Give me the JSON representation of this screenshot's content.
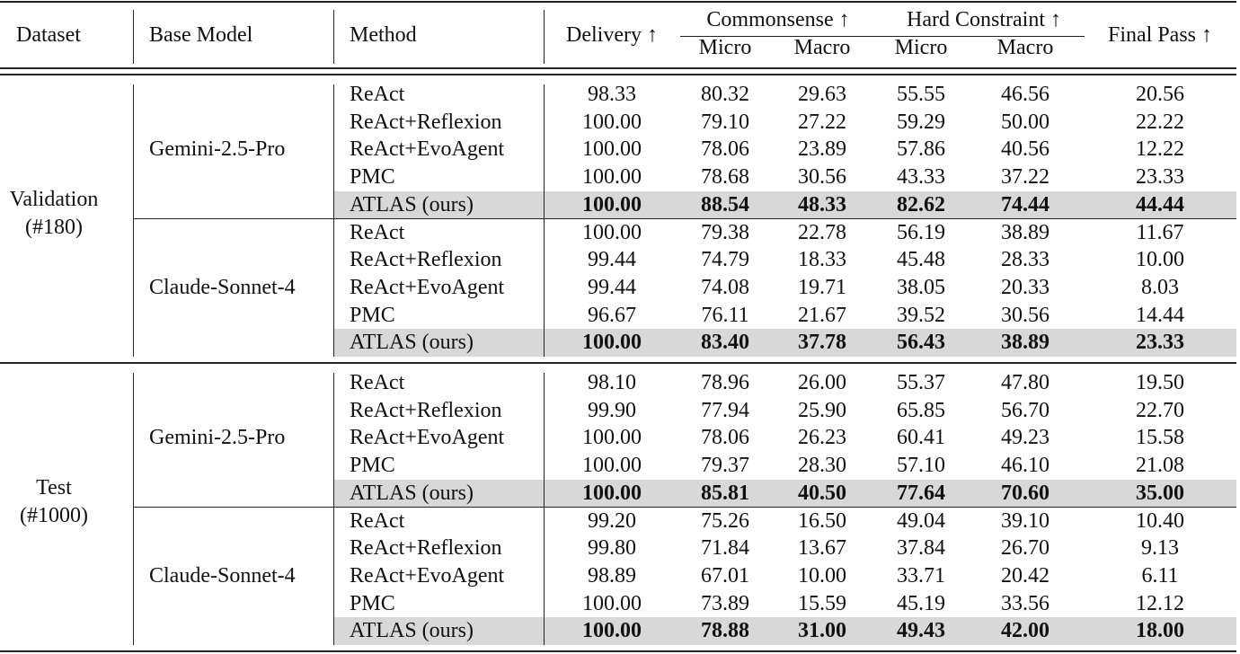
{
  "header": {
    "dataset": "Dataset",
    "base_model": "Base Model",
    "method": "Method",
    "delivery": "Delivery ↑",
    "commonsense": "Commonsense ↑",
    "hard_constraint": "Hard Constraint ↑",
    "micro": "Micro",
    "macro": "Macro",
    "final_pass": "Final Pass ↑"
  },
  "sections": [
    {
      "dataset": "Validation",
      "count": "(#180)",
      "models": [
        {
          "name": "Gemini-2.5-Pro",
          "rows": [
            {
              "method": "ReAct",
              "values": [
                "98.33",
                "80.32",
                "29.63",
                "55.55",
                "46.56",
                "20.56"
              ],
              "highlight": false
            },
            {
              "method": "ReAct+Reflexion",
              "values": [
                "100.00",
                "79.10",
                "27.22",
                "59.29",
                "50.00",
                "22.22"
              ],
              "highlight": false
            },
            {
              "method": "ReAct+EvoAgent",
              "values": [
                "100.00",
                "78.06",
                "23.89",
                "57.86",
                "40.56",
                "12.22"
              ],
              "highlight": false
            },
            {
              "method": "PMC",
              "values": [
                "100.00",
                "78.68",
                "30.56",
                "43.33",
                "37.22",
                "23.33"
              ],
              "highlight": false
            },
            {
              "method": "ATLAS (ours)",
              "values": [
                "100.00",
                "88.54",
                "48.33",
                "82.62",
                "74.44",
                "44.44"
              ],
              "highlight": true
            }
          ]
        },
        {
          "name": "Claude-Sonnet-4",
          "rows": [
            {
              "method": "ReAct",
              "values": [
                "100.00",
                "79.38",
                "22.78",
                "56.19",
                "38.89",
                "11.67"
              ],
              "highlight": false
            },
            {
              "method": "ReAct+Reflexion",
              "values": [
                "99.44",
                "74.79",
                "18.33",
                "45.48",
                "28.33",
                "10.00"
              ],
              "highlight": false
            },
            {
              "method": "ReAct+EvoAgent",
              "values": [
                "99.44",
                "74.08",
                "19.71",
                "38.05",
                "20.33",
                "8.03"
              ],
              "highlight": false
            },
            {
              "method": "PMC",
              "values": [
                "96.67",
                "76.11",
                "21.67",
                "39.52",
                "30.56",
                "14.44"
              ],
              "highlight": false
            },
            {
              "method": "ATLAS (ours)",
              "values": [
                "100.00",
                "83.40",
                "37.78",
                "56.43",
                "38.89",
                "23.33"
              ],
              "highlight": true
            }
          ]
        }
      ]
    },
    {
      "dataset": "Test",
      "count": "(#1000)",
      "models": [
        {
          "name": "Gemini-2.5-Pro",
          "rows": [
            {
              "method": "ReAct",
              "values": [
                "98.10",
                "78.96",
                "26.00",
                "55.37",
                "47.80",
                "19.50"
              ],
              "highlight": false
            },
            {
              "method": "ReAct+Reflexion",
              "values": [
                "99.90",
                "77.94",
                "25.90",
                "65.85",
                "56.70",
                "22.70"
              ],
              "highlight": false
            },
            {
              "method": "ReAct+EvoAgent",
              "values": [
                "100.00",
                "78.06",
                "26.23",
                "60.41",
                "49.23",
                "15.58"
              ],
              "highlight": false
            },
            {
              "method": "PMC",
              "values": [
                "100.00",
                "79.37",
                "28.30",
                "57.10",
                "46.10",
                "21.08"
              ],
              "highlight": false
            },
            {
              "method": "ATLAS (ours)",
              "values": [
                "100.00",
                "85.81",
                "40.50",
                "77.64",
                "70.60",
                "35.00"
              ],
              "highlight": true
            }
          ]
        },
        {
          "name": "Claude-Sonnet-4",
          "rows": [
            {
              "method": "ReAct",
              "values": [
                "99.20",
                "75.26",
                "16.50",
                "49.04",
                "39.10",
                "10.40"
              ],
              "highlight": false
            },
            {
              "method": "ReAct+Reflexion",
              "values": [
                "99.80",
                "71.84",
                "13.67",
                "37.84",
                "26.70",
                "9.13"
              ],
              "highlight": false
            },
            {
              "method": "ReAct+EvoAgent",
              "values": [
                "98.89",
                "67.01",
                "10.00",
                "33.71",
                "20.42",
                "6.11"
              ],
              "highlight": false
            },
            {
              "method": "PMC",
              "values": [
                "100.00",
                "73.89",
                "15.59",
                "45.19",
                "33.56",
                "12.12"
              ],
              "highlight": false
            },
            {
              "method": "ATLAS (ours)",
              "values": [
                "100.00",
                "78.88",
                "31.00",
                "49.43",
                "42.00",
                "18.00"
              ],
              "highlight": true
            }
          ]
        }
      ]
    }
  ]
}
